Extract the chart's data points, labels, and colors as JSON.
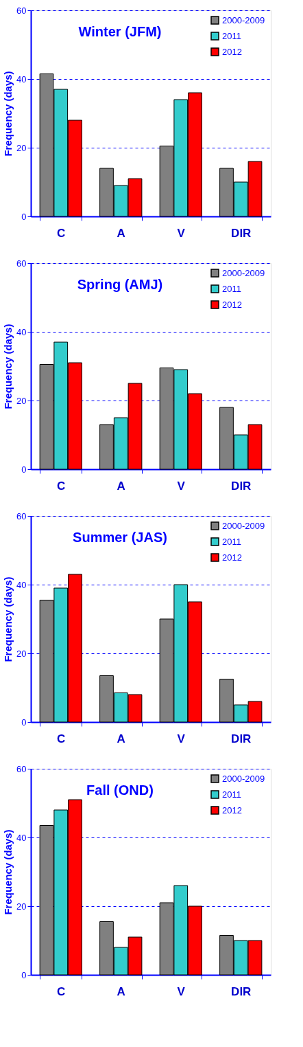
{
  "chart_data": [
    {
      "type": "bar",
      "title": "Winter  (JFM)",
      "ylabel": "Frequency (days)",
      "categories": [
        "C",
        "A",
        "V",
        "DIR"
      ],
      "series": [
        {
          "name": "2000-2009",
          "color": "#808080",
          "values": [
            41.5,
            14,
            20.5,
            14
          ]
        },
        {
          "name": "2011",
          "color": "#33cccc",
          "values": [
            37,
            9,
            34,
            10
          ]
        },
        {
          "name": "2012",
          "color": "#ff0000",
          "values": [
            28,
            11,
            36,
            16
          ]
        }
      ],
      "ylim": [
        0,
        60
      ],
      "yticks": [
        0,
        20,
        40,
        60
      ],
      "grid": "y",
      "legend": "top right"
    },
    {
      "type": "bar",
      "title": "Spring (AMJ)",
      "ylabel": "Frequency (days)",
      "categories": [
        "C",
        "A",
        "V",
        "DIR"
      ],
      "series": [
        {
          "name": "2000-2009",
          "color": "#808080",
          "values": [
            30.5,
            13,
            29.5,
            18
          ]
        },
        {
          "name": "2011",
          "color": "#33cccc",
          "values": [
            37,
            15,
            29,
            10
          ]
        },
        {
          "name": "2012",
          "color": "#ff0000",
          "values": [
            31,
            25,
            22,
            13
          ]
        }
      ],
      "ylim": [
        0,
        60
      ],
      "yticks": [
        0,
        20,
        40,
        60
      ],
      "grid": "y",
      "legend": "top right"
    },
    {
      "type": "bar",
      "title": "Summer (JAS)",
      "ylabel": "Frequency (days)",
      "categories": [
        "C",
        "A",
        "V",
        "DIR"
      ],
      "series": [
        {
          "name": "2000-2009",
          "color": "#808080",
          "values": [
            35.5,
            13.5,
            30,
            12.5
          ]
        },
        {
          "name": "2011",
          "color": "#33cccc",
          "values": [
            39,
            8.5,
            40,
            5
          ]
        },
        {
          "name": "2012",
          "color": "#ff0000",
          "values": [
            43,
            8,
            35,
            6
          ]
        }
      ],
      "ylim": [
        0,
        60
      ],
      "yticks": [
        0,
        20,
        40,
        60
      ],
      "grid": "y",
      "legend": "top right"
    },
    {
      "type": "bar",
      "title": "Fall (OND)",
      "ylabel": "Frequency (days)",
      "categories": [
        "C",
        "A",
        "V",
        "DIR"
      ],
      "series": [
        {
          "name": "2000-2009",
          "color": "#808080",
          "values": [
            43.5,
            15.5,
            21,
            11.5
          ]
        },
        {
          "name": "2011",
          "color": "#33cccc",
          "values": [
            48,
            8,
            26,
            10
          ]
        },
        {
          "name": "2012",
          "color": "#ff0000",
          "values": [
            51,
            11,
            20,
            10
          ]
        }
      ],
      "ylim": [
        0,
        60
      ],
      "yticks": [
        0,
        20,
        40,
        60
      ],
      "grid": "y",
      "legend": "top right"
    }
  ]
}
